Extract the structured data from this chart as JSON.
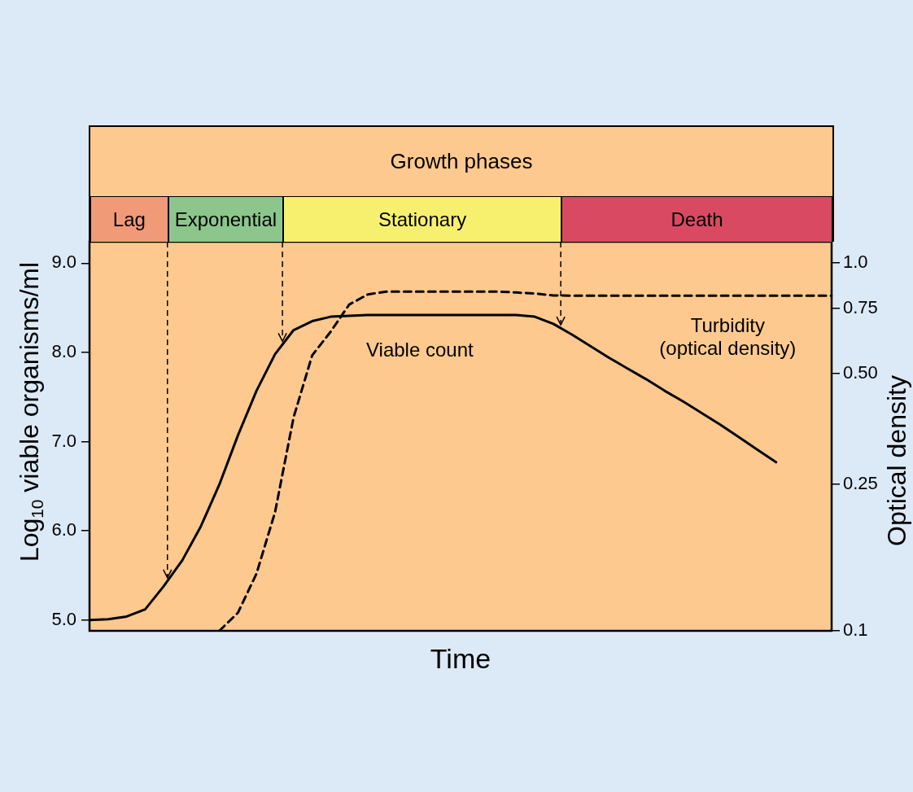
{
  "chart_data": {
    "type": "line",
    "title": "Growth phases",
    "xlabel": "Time",
    "ylabel": "Log$_{10}$ viable organisms/ml",
    "y2label": "Optical density",
    "categories": [
      null,
      null,
      null,
      null,
      null,
      null,
      null,
      null,
      null,
      null,
      null,
      null,
      null,
      null,
      null,
      null,
      null,
      null,
      null,
      null,
      null,
      null,
      null,
      null,
      null,
      null,
      null,
      null,
      null,
      null,
      null,
      null,
      null,
      null,
      null,
      null,
      null,
      null,
      null,
      null,
      null
    ],
    "ylim": [
      4.88,
      9.24
    ],
    "yticks": [
      {
        "value": 5,
        "label": "5.0"
      },
      {
        "value": 6,
        "label": "6.0"
      },
      {
        "value": 7,
        "label": "7.0"
      },
      {
        "value": 8,
        "label": "8.0"
      },
      {
        "value": 9,
        "label": "9.0"
      }
    ],
    "y2lim": [
      0.1,
      1.14
    ],
    "y2ticks": [
      0.1,
      0.25,
      {
        "value": 0.5,
        "label": "0.50"
      },
      0.75,
      {
        "value": 1,
        "label": "1.0"
      }
    ],
    "log": "y2",
    "grid": false,
    "legend": false,
    "marker": "none",
    "series": [
      {
        "name": "Viable count",
        "color": "#000000",
        "line_style": "solid",
        "axis": "y",
        "values": [
          5.0,
          5.01,
          5.04,
          5.12,
          5.38,
          5.67,
          6.05,
          6.52,
          7.07,
          7.57,
          7.98,
          8.25,
          8.35,
          8.4,
          8.41,
          8.42,
          8.42,
          8.42,
          8.42,
          8.42,
          8.42,
          8.42,
          8.42,
          8.42,
          8.4,
          8.32,
          8.2,
          8.07,
          7.94,
          7.82,
          7.7,
          7.57,
          7.45,
          7.32,
          7.19,
          7.05,
          6.91,
          6.77,
          null,
          null,
          null
        ]
      },
      {
        "name": "Turbidity\n(optical density)",
        "color": "#000000",
        "line_style": "dashed",
        "axis": "y2",
        "values": [
          null,
          null,
          null,
          null,
          null,
          null,
          null,
          0.1,
          0.112,
          0.143,
          0.21,
          0.38,
          0.56,
          0.65,
          0.77,
          0.82,
          0.835,
          0.835,
          0.835,
          0.835,
          0.835,
          0.835,
          0.835,
          0.83,
          0.825,
          0.815,
          0.814,
          0.814,
          0.814,
          0.814,
          0.814,
          0.814,
          0.814,
          0.814,
          0.814,
          0.814,
          0.814,
          0.814,
          0.814,
          0.814,
          0.814
        ]
      }
    ],
    "annotations": [
      "Lag",
      "Exponential",
      "Stationary",
      "Death"
    ]
  }
}
